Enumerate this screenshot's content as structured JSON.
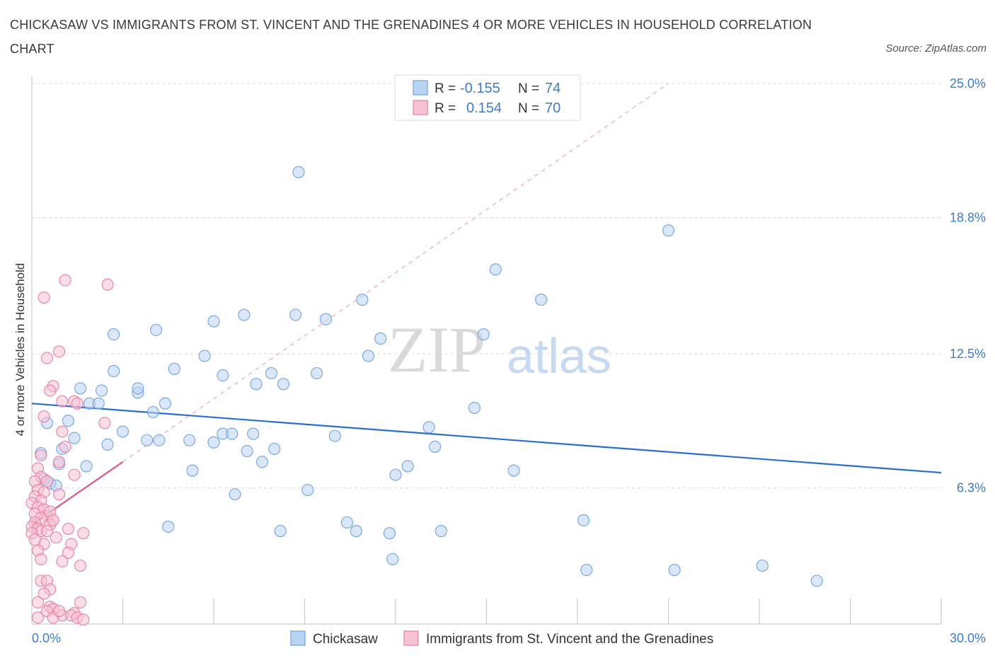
{
  "title": "CHICKASAW VS IMMIGRANTS FROM ST. VINCENT AND THE GRENADINES 4 OR MORE VEHICLES IN HOUSEHOLD CORRELATION CHART",
  "source": "Source: ZipAtlas.com",
  "watermark": {
    "zip": "ZIP",
    "atlas": "atlas"
  },
  "colors": {
    "blue": "#6fa3e0",
    "blue_fill": "#b9d3f3",
    "blue_line": "#2a6fcf",
    "pink": "#e87fa3",
    "pink_fill": "#f6c3d4",
    "pink_line": "#e0578a",
    "tick_text": "#3d7cc9"
  },
  "legend": {
    "rows": [
      {
        "r_label": "R =",
        "r_value": "-0.155",
        "n_label": "N =",
        "n_value": "74"
      },
      {
        "r_label": "R =",
        "r_value": "0.154",
        "n_label": "N =",
        "n_value": "70"
      }
    ]
  },
  "bottom_legend": [
    "Chickasaw",
    "Immigrants from St. Vincent and the Grenadines"
  ],
  "chart_data": {
    "type": "scatter",
    "title": "CHICKASAW VS IMMIGRANTS FROM ST. VINCENT AND THE GRENADINES 4 OR MORE VEHICLES IN HOUSEHOLD CORRELATION CHART",
    "xlabel": "",
    "ylabel": "4 or more Vehicles in Household",
    "xlim": [
      0,
      30
    ],
    "ylim": [
      0,
      25.0
    ],
    "x_tick_labels": [
      "0.0%",
      "30.0%"
    ],
    "y_tick_labels": [
      "6.3%",
      "12.5%",
      "18.8%",
      "25.0%"
    ],
    "y_ticks": [
      6.3,
      12.5,
      18.8,
      25.0
    ],
    "grid": true,
    "legend_position": "top-center",
    "series": [
      {
        "name": "Chickasaw",
        "color": "#6fa3e0",
        "r": -0.155,
        "n": 74,
        "trend": {
          "x": [
            0,
            30
          ],
          "y": [
            10.2,
            7.0
          ]
        },
        "points": [
          [
            8.8,
            20.9
          ],
          [
            21.0,
            18.2
          ],
          [
            15.3,
            16.4
          ],
          [
            10.9,
            15.0
          ],
          [
            16.8,
            15.0
          ],
          [
            7.0,
            14.3
          ],
          [
            8.7,
            14.3
          ],
          [
            9.7,
            14.1
          ],
          [
            6.0,
            14.0
          ],
          [
            11.5,
            13.2
          ],
          [
            14.9,
            13.4
          ],
          [
            2.7,
            13.4
          ],
          [
            4.1,
            13.6
          ],
          [
            11.1,
            12.4
          ],
          [
            5.7,
            12.4
          ],
          [
            7.9,
            11.6
          ],
          [
            9.4,
            11.6
          ],
          [
            2.7,
            11.7
          ],
          [
            4.7,
            11.8
          ],
          [
            3.5,
            10.7
          ],
          [
            6.3,
            11.5
          ],
          [
            7.4,
            11.1
          ],
          [
            8.3,
            11.1
          ],
          [
            1.6,
            10.9
          ],
          [
            2.3,
            10.8
          ],
          [
            3.5,
            10.9
          ],
          [
            1.9,
            10.2
          ],
          [
            2.2,
            10.2
          ],
          [
            4.4,
            10.2
          ],
          [
            14.6,
            10.0
          ],
          [
            4.0,
            9.8
          ],
          [
            1.2,
            9.4
          ],
          [
            0.5,
            9.3
          ],
          [
            3.0,
            8.9
          ],
          [
            6.3,
            8.8
          ],
          [
            6.6,
            8.8
          ],
          [
            7.3,
            8.8
          ],
          [
            10.0,
            8.7
          ],
          [
            13.1,
            9.1
          ],
          [
            1.4,
            8.6
          ],
          [
            3.8,
            8.5
          ],
          [
            4.2,
            8.5
          ],
          [
            5.2,
            8.5
          ],
          [
            6.0,
            8.4
          ],
          [
            2.5,
            8.3
          ],
          [
            13.3,
            8.2
          ],
          [
            1.0,
            8.1
          ],
          [
            7.1,
            8.0
          ],
          [
            8.0,
            8.1
          ],
          [
            0.3,
            7.9
          ],
          [
            7.6,
            7.5
          ],
          [
            0.9,
            7.4
          ],
          [
            12.4,
            7.3
          ],
          [
            1.8,
            7.3
          ],
          [
            5.3,
            7.1
          ],
          [
            15.9,
            7.1
          ],
          [
            12.0,
            6.9
          ],
          [
            0.6,
            6.5
          ],
          [
            9.1,
            6.2
          ],
          [
            6.7,
            6.0
          ],
          [
            18.2,
            4.8
          ],
          [
            10.4,
            4.7
          ],
          [
            4.5,
            4.5
          ],
          [
            8.2,
            4.3
          ],
          [
            10.7,
            4.3
          ],
          [
            11.8,
            4.2
          ],
          [
            13.5,
            4.3
          ],
          [
            11.9,
            3.0
          ],
          [
            24.1,
            2.7
          ],
          [
            18.3,
            2.5
          ],
          [
            21.2,
            2.5
          ],
          [
            25.9,
            2.0
          ],
          [
            0.4,
            6.7
          ],
          [
            0.8,
            6.4
          ]
        ]
      },
      {
        "name": "Immigrants from St. Vincent and the Grenadines",
        "color": "#e87fa3",
        "r": 0.154,
        "n": 70,
        "trend_solid": {
          "x": [
            0,
            3.0
          ],
          "y": [
            4.6,
            7.5
          ]
        },
        "trend_dashed": {
          "x": [
            3.0,
            21.0
          ],
          "y": [
            7.5,
            25.0
          ]
        },
        "points": [
          [
            1.1,
            15.9
          ],
          [
            2.5,
            15.7
          ],
          [
            0.4,
            15.1
          ],
          [
            0.9,
            12.6
          ],
          [
            0.5,
            12.3
          ],
          [
            0.7,
            11.0
          ],
          [
            0.6,
            10.8
          ],
          [
            1.0,
            10.3
          ],
          [
            1.4,
            10.3
          ],
          [
            1.5,
            10.2
          ],
          [
            2.4,
            9.3
          ],
          [
            0.4,
            9.6
          ],
          [
            1.0,
            8.9
          ],
          [
            1.1,
            8.2
          ],
          [
            0.3,
            7.8
          ],
          [
            0.9,
            7.5
          ],
          [
            0.2,
            7.2
          ],
          [
            1.4,
            6.9
          ],
          [
            0.3,
            6.8
          ],
          [
            0.1,
            6.6
          ],
          [
            0.5,
            6.6
          ],
          [
            0.2,
            6.2
          ],
          [
            0.4,
            6.1
          ],
          [
            0.1,
            5.9
          ],
          [
            0.3,
            5.7
          ],
          [
            0.0,
            5.6
          ],
          [
            0.2,
            5.4
          ],
          [
            0.4,
            5.3
          ],
          [
            0.1,
            5.1
          ],
          [
            0.5,
            5.0
          ],
          [
            0.3,
            4.9
          ],
          [
            0.7,
            4.8
          ],
          [
            0.1,
            4.7
          ],
          [
            0.6,
            4.6
          ],
          [
            0.0,
            4.5
          ],
          [
            0.2,
            4.4
          ],
          [
            0.3,
            4.3
          ],
          [
            0.5,
            4.3
          ],
          [
            0.0,
            4.2
          ],
          [
            1.2,
            4.4
          ],
          [
            1.7,
            4.2
          ],
          [
            0.4,
            3.7
          ],
          [
            1.3,
            3.7
          ],
          [
            0.2,
            3.4
          ],
          [
            1.2,
            3.3
          ],
          [
            0.3,
            3.0
          ],
          [
            1.0,
            2.9
          ],
          [
            1.6,
            2.7
          ],
          [
            0.3,
            2.0
          ],
          [
            0.5,
            2.0
          ],
          [
            0.6,
            1.6
          ],
          [
            0.4,
            1.4
          ],
          [
            0.2,
            1.0
          ],
          [
            0.6,
            0.8
          ],
          [
            0.7,
            0.7
          ],
          [
            1.6,
            1.0
          ],
          [
            0.5,
            0.6
          ],
          [
            1.4,
            0.5
          ],
          [
            0.2,
            0.3
          ],
          [
            1.0,
            0.4
          ],
          [
            1.3,
            0.4
          ],
          [
            1.5,
            0.3
          ],
          [
            0.7,
            0.3
          ],
          [
            1.7,
            0.2
          ],
          [
            0.9,
            0.6
          ],
          [
            0.8,
            4.0
          ],
          [
            0.6,
            5.2
          ],
          [
            0.9,
            6.0
          ],
          [
            0.1,
            3.9
          ],
          [
            0.7,
            4.8
          ]
        ]
      }
    ]
  }
}
